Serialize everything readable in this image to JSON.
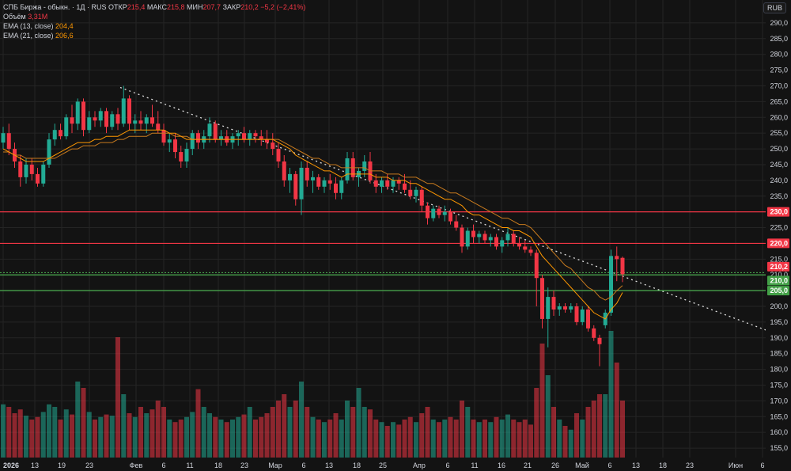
{
  "header": {
    "symbol": "СПБ Биржа - обыкн.",
    "interval": "1Д",
    "exchange": "RUS",
    "open_label": "ОТКР",
    "open": "215,4",
    "high_label": "МАКС",
    "high": "215,8",
    "low_label": "МИН",
    "low": "207,7",
    "close_label": "ЗАКР",
    "close": "210,2",
    "change": "−5,2 (−2,41%)",
    "volume_label": "Объём",
    "volume": "3,31M",
    "ema13_label": "EMA (13, close)",
    "ema13": "204,4",
    "ema21_label": "EMA (21, close)",
    "ema21": "206,6"
  },
  "currency": "RUB",
  "colors": {
    "up": "#22ab94",
    "down": "#f23645",
    "ema13": "#ff9800",
    "ema21": "#c77a1e",
    "background": "#131313",
    "grid": "#242424",
    "green_line": "#4caf50"
  },
  "chart_data": {
    "type": "candlestick",
    "y_axis": {
      "range": [
        152,
        294
      ],
      "ticks": [
        "155,0",
        "160,0",
        "165,0",
        "170,0",
        "175,0",
        "180,0",
        "185,0",
        "190,0",
        "195,0",
        "200,0",
        "205,0",
        "210,0",
        "215,0",
        "220,0",
        "225,0",
        "230,0",
        "235,0",
        "240,0",
        "245,0",
        "250,0",
        "255,0",
        "260,0",
        "265,0",
        "270,0",
        "275,0",
        "280,0",
        "285,0",
        "290,0"
      ]
    },
    "x_axis_labels": [
      "2026",
      "13",
      "19",
      "23",
      "Фев",
      "6",
      "11",
      "18",
      "23",
      "Мар",
      "6",
      "13",
      "18",
      "25",
      "Апр",
      "6",
      "11",
      "16",
      "21",
      "26",
      "Май",
      "6",
      "13",
      "18",
      "23",
      "Июн",
      "6"
    ],
    "horizontal_levels": [
      {
        "price": 230.0,
        "label": "230,0",
        "kind": "resistance"
      },
      {
        "price": 220.0,
        "label": "220,0",
        "kind": "resistance"
      },
      {
        "price": 210.2,
        "label": "210,2",
        "kind": "last"
      },
      {
        "price": 210.0,
        "label": "210,0",
        "kind": "support"
      },
      {
        "price": 205.0,
        "label": "205,0",
        "kind": "support"
      }
    ],
    "trendline": {
      "from": {
        "bar": 0,
        "price": 269.5
      },
      "to": {
        "bar": 118,
        "price": 192.5
      }
    },
    "candles": [
      {
        "o": 252,
        "h": 257,
        "l": 250,
        "c": 255,
        "v": 0.42
      },
      {
        "o": 255,
        "h": 258,
        "l": 248,
        "c": 250,
        "v": 0.4
      },
      {
        "o": 250,
        "h": 252,
        "l": 244,
        "c": 246,
        "v": 0.35
      },
      {
        "o": 246,
        "h": 248,
        "l": 238,
        "c": 241,
        "v": 0.38
      },
      {
        "o": 241,
        "h": 247,
        "l": 239,
        "c": 245,
        "v": 0.33
      },
      {
        "o": 245,
        "h": 247,
        "l": 240,
        "c": 242,
        "v": 0.3
      },
      {
        "o": 242,
        "h": 244,
        "l": 238,
        "c": 239,
        "v": 0.32
      },
      {
        "o": 239,
        "h": 246,
        "l": 238,
        "c": 245,
        "v": 0.36
      },
      {
        "o": 245,
        "h": 255,
        "l": 244,
        "c": 253,
        "v": 0.42
      },
      {
        "o": 253,
        "h": 258,
        "l": 251,
        "c": 256,
        "v": 0.4
      },
      {
        "o": 256,
        "h": 258,
        "l": 253,
        "c": 254,
        "v": 0.3
      },
      {
        "o": 254,
        "h": 261,
        "l": 253,
        "c": 260,
        "v": 0.38
      },
      {
        "o": 260,
        "h": 264,
        "l": 255,
        "c": 258,
        "v": 0.34
      },
      {
        "o": 258,
        "h": 266,
        "l": 256,
        "c": 265,
        "v": 0.6
      },
      {
        "o": 265,
        "h": 266,
        "l": 254,
        "c": 256,
        "v": 0.55
      },
      {
        "o": 256,
        "h": 262,
        "l": 255,
        "c": 260,
        "v": 0.36
      },
      {
        "o": 260,
        "h": 262,
        "l": 257,
        "c": 259,
        "v": 0.3
      },
      {
        "o": 259,
        "h": 263,
        "l": 257,
        "c": 262,
        "v": 0.32
      },
      {
        "o": 262,
        "h": 263,
        "l": 255,
        "c": 257,
        "v": 0.34
      },
      {
        "o": 257,
        "h": 262,
        "l": 256,
        "c": 261,
        "v": 0.33
      },
      {
        "o": 261,
        "h": 263,
        "l": 256,
        "c": 258,
        "v": 0.95
      },
      {
        "o": 258,
        "h": 270,
        "l": 257,
        "c": 266,
        "v": 0.5
      },
      {
        "o": 266,
        "h": 267,
        "l": 256,
        "c": 258,
        "v": 0.35
      },
      {
        "o": 258,
        "h": 261,
        "l": 255,
        "c": 259,
        "v": 0.32
      },
      {
        "o": 259,
        "h": 262,
        "l": 256,
        "c": 258,
        "v": 0.4
      },
      {
        "o": 258,
        "h": 261,
        "l": 255,
        "c": 260,
        "v": 0.35
      },
      {
        "o": 260,
        "h": 264,
        "l": 257,
        "c": 258,
        "v": 0.38
      },
      {
        "o": 258,
        "h": 262,
        "l": 255,
        "c": 256,
        "v": 0.45
      },
      {
        "o": 256,
        "h": 258,
        "l": 251,
        "c": 252,
        "v": 0.4
      },
      {
        "o": 252,
        "h": 255,
        "l": 249,
        "c": 253,
        "v": 0.3
      },
      {
        "o": 253,
        "h": 255,
        "l": 247,
        "c": 249,
        "v": 0.28
      },
      {
        "o": 249,
        "h": 251,
        "l": 244,
        "c": 246,
        "v": 0.3
      },
      {
        "o": 246,
        "h": 252,
        "l": 244,
        "c": 250,
        "v": 0.32
      },
      {
        "o": 250,
        "h": 256,
        "l": 248,
        "c": 255,
        "v": 0.36
      },
      {
        "o": 255,
        "h": 256,
        "l": 250,
        "c": 252,
        "v": 0.54
      },
      {
        "o": 252,
        "h": 256,
        "l": 250,
        "c": 254,
        "v": 0.4
      },
      {
        "o": 254,
        "h": 260,
        "l": 252,
        "c": 258,
        "v": 0.35
      },
      {
        "o": 258,
        "h": 259,
        "l": 252,
        "c": 253,
        "v": 0.32
      },
      {
        "o": 253,
        "h": 256,
        "l": 251,
        "c": 254,
        "v": 0.3
      },
      {
        "o": 254,
        "h": 256,
        "l": 251,
        "c": 252,
        "v": 0.28
      },
      {
        "o": 252,
        "h": 255,
        "l": 250,
        "c": 254,
        "v": 0.3
      },
      {
        "o": 254,
        "h": 256,
        "l": 251,
        "c": 255,
        "v": 0.32
      },
      {
        "o": 255,
        "h": 257,
        "l": 252,
        "c": 253,
        "v": 0.34
      },
      {
        "o": 253,
        "h": 256,
        "l": 251,
        "c": 255,
        "v": 0.4
      },
      {
        "o": 255,
        "h": 256,
        "l": 252,
        "c": 254,
        "v": 0.3
      },
      {
        "o": 254,
        "h": 256,
        "l": 251,
        "c": 253,
        "v": 0.32
      },
      {
        "o": 253,
        "h": 256,
        "l": 250,
        "c": 252,
        "v": 0.35
      },
      {
        "o": 252,
        "h": 255,
        "l": 248,
        "c": 250,
        "v": 0.4
      },
      {
        "o": 250,
        "h": 252,
        "l": 244,
        "c": 246,
        "v": 0.45
      },
      {
        "o": 246,
        "h": 248,
        "l": 238,
        "c": 240,
        "v": 0.5
      },
      {
        "o": 240,
        "h": 244,
        "l": 236,
        "c": 242,
        "v": 0.4
      },
      {
        "o": 242,
        "h": 243,
        "l": 232,
        "c": 234,
        "v": 0.45
      },
      {
        "o": 234,
        "h": 246,
        "l": 229,
        "c": 244,
        "v": 0.6
      },
      {
        "o": 244,
        "h": 246,
        "l": 238,
        "c": 240,
        "v": 0.4
      },
      {
        "o": 240,
        "h": 243,
        "l": 236,
        "c": 241,
        "v": 0.32
      },
      {
        "o": 241,
        "h": 242,
        "l": 237,
        "c": 238,
        "v": 0.3
      },
      {
        "o": 238,
        "h": 241,
        "l": 236,
        "c": 240,
        "v": 0.28
      },
      {
        "o": 240,
        "h": 242,
        "l": 237,
        "c": 239,
        "v": 0.3
      },
      {
        "o": 239,
        "h": 241,
        "l": 234,
        "c": 236,
        "v": 0.35
      },
      {
        "o": 236,
        "h": 241,
        "l": 234,
        "c": 240,
        "v": 0.3
      },
      {
        "o": 240,
        "h": 249,
        "l": 239,
        "c": 247,
        "v": 0.45
      },
      {
        "o": 247,
        "h": 249,
        "l": 240,
        "c": 241,
        "v": 0.4
      },
      {
        "o": 241,
        "h": 244,
        "l": 238,
        "c": 243,
        "v": 0.55
      },
      {
        "o": 243,
        "h": 248,
        "l": 241,
        "c": 246,
        "v": 0.4
      },
      {
        "o": 246,
        "h": 249,
        "l": 239,
        "c": 240,
        "v": 0.38
      },
      {
        "o": 240,
        "h": 242,
        "l": 236,
        "c": 238,
        "v": 0.3
      },
      {
        "o": 238,
        "h": 241,
        "l": 236,
        "c": 240,
        "v": 0.28
      },
      {
        "o": 240,
        "h": 242,
        "l": 237,
        "c": 238,
        "v": 0.25
      },
      {
        "o": 238,
        "h": 241,
        "l": 236,
        "c": 240,
        "v": 0.28
      },
      {
        "o": 240,
        "h": 241,
        "l": 237,
        "c": 239,
        "v": 0.26
      },
      {
        "o": 239,
        "h": 242,
        "l": 236,
        "c": 237,
        "v": 0.3
      },
      {
        "o": 237,
        "h": 240,
        "l": 234,
        "c": 235,
        "v": 0.32
      },
      {
        "o": 235,
        "h": 238,
        "l": 233,
        "c": 237,
        "v": 0.28
      },
      {
        "o": 237,
        "h": 238,
        "l": 230,
        "c": 232,
        "v": 0.35
      },
      {
        "o": 232,
        "h": 233,
        "l": 226,
        "c": 228,
        "v": 0.4
      },
      {
        "o": 228,
        "h": 232,
        "l": 227,
        "c": 231,
        "v": 0.3
      },
      {
        "o": 231,
        "h": 232,
        "l": 228,
        "c": 229,
        "v": 0.28
      },
      {
        "o": 229,
        "h": 232,
        "l": 227,
        "c": 230,
        "v": 0.3
      },
      {
        "o": 230,
        "h": 231,
        "l": 226,
        "c": 227,
        "v": 0.32
      },
      {
        "o": 227,
        "h": 229,
        "l": 224,
        "c": 225,
        "v": 0.3
      },
      {
        "o": 225,
        "h": 226,
        "l": 217,
        "c": 219,
        "v": 0.45
      },
      {
        "o": 219,
        "h": 225,
        "l": 218,
        "c": 224,
        "v": 0.4
      },
      {
        "o": 224,
        "h": 226,
        "l": 220,
        "c": 222,
        "v": 0.3
      },
      {
        "o": 222,
        "h": 224,
        "l": 220,
        "c": 223,
        "v": 0.28
      },
      {
        "o": 223,
        "h": 224,
        "l": 220,
        "c": 221,
        "v": 0.3
      },
      {
        "o": 221,
        "h": 223,
        "l": 219,
        "c": 222,
        "v": 0.28
      },
      {
        "o": 222,
        "h": 223,
        "l": 218,
        "c": 219,
        "v": 0.32
      },
      {
        "o": 219,
        "h": 222,
        "l": 217,
        "c": 221,
        "v": 0.3
      },
      {
        "o": 221,
        "h": 225,
        "l": 219,
        "c": 223,
        "v": 0.34
      },
      {
        "o": 223,
        "h": 224,
        "l": 219,
        "c": 220,
        "v": 0.3
      },
      {
        "o": 220,
        "h": 222,
        "l": 218,
        "c": 219,
        "v": 0.28
      },
      {
        "o": 219,
        "h": 221,
        "l": 217,
        "c": 218,
        "v": 0.3
      },
      {
        "o": 218,
        "h": 219,
        "l": 216,
        "c": 217,
        "v": 0.26
      },
      {
        "o": 217,
        "h": 218,
        "l": 200,
        "c": 209,
        "v": 0.55
      },
      {
        "o": 209,
        "h": 210,
        "l": 193,
        "c": 196,
        "v": 0.9
      },
      {
        "o": 196,
        "h": 206,
        "l": 187,
        "c": 203,
        "v": 0.65
      },
      {
        "o": 203,
        "h": 205,
        "l": 197,
        "c": 199,
        "v": 0.4
      },
      {
        "o": 199,
        "h": 201,
        "l": 197,
        "c": 200,
        "v": 0.3
      },
      {
        "o": 200,
        "h": 201,
        "l": 198,
        "c": 199,
        "v": 0.25
      },
      {
        "o": 199,
        "h": 201,
        "l": 198,
        "c": 200,
        "v": 0.22
      },
      {
        "o": 200,
        "h": 201,
        "l": 194,
        "c": 195,
        "v": 0.35
      },
      {
        "o": 195,
        "h": 200,
        "l": 194,
        "c": 199,
        "v": 0.3
      },
      {
        "o": 199,
        "h": 200,
        "l": 192,
        "c": 193,
        "v": 0.4
      },
      {
        "o": 193,
        "h": 194,
        "l": 189,
        "c": 190,
        "v": 0.45
      },
      {
        "o": 190,
        "h": 191,
        "l": 181,
        "c": 188,
        "v": 0.5
      },
      {
        "o": 194,
        "h": 199,
        "l": 193,
        "c": 198,
        "v": 0.5
      },
      {
        "o": 198,
        "h": 218,
        "l": 197,
        "c": 216,
        "v": 1.0
      },
      {
        "o": 216,
        "h": 219,
        "l": 208,
        "c": 215,
        "v": 0.75
      },
      {
        "o": 215.4,
        "h": 215.8,
        "l": 207.7,
        "c": 210.2,
        "v": 0.45
      }
    ],
    "ema13": [
      250,
      249,
      248,
      247,
      246,
      246,
      246,
      246,
      247,
      248,
      249,
      250,
      251,
      252,
      252,
      252,
      253,
      253,
      254,
      254,
      254,
      255,
      256,
      256,
      256,
      256,
      256,
      256,
      256,
      255,
      255,
      254,
      253,
      253,
      253,
      253,
      253,
      253,
      253,
      253,
      253,
      253,
      253,
      253,
      253,
      253,
      253,
      253,
      252,
      251,
      250,
      248,
      247,
      246,
      245,
      244,
      243,
      243,
      242,
      241,
      242,
      242,
      242,
      242,
      242,
      241,
      241,
      241,
      240,
      240,
      240,
      239,
      239,
      238,
      237,
      236,
      235,
      234,
      234,
      233,
      232,
      230,
      229,
      229,
      228,
      227,
      226,
      225,
      225,
      224,
      224,
      223,
      222,
      219,
      216,
      214,
      212,
      210,
      208,
      206,
      204,
      202,
      200,
      198,
      197,
      196,
      199,
      201,
      204.4
    ],
    "ema21": [
      249,
      249,
      248,
      248,
      247,
      247,
      247,
      247,
      247,
      247,
      248,
      249,
      250,
      250,
      251,
      251,
      251,
      252,
      252,
      252,
      253,
      253,
      254,
      254,
      254,
      254,
      255,
      255,
      255,
      255,
      254,
      254,
      254,
      253,
      253,
      253,
      253,
      253,
      253,
      253,
      253,
      253,
      253,
      253,
      253,
      253,
      253,
      253,
      253,
      252,
      251,
      250,
      249,
      248,
      247,
      247,
      246,
      245,
      245,
      244,
      244,
      244,
      244,
      244,
      243,
      243,
      243,
      242,
      242,
      242,
      241,
      241,
      241,
      240,
      239,
      239,
      238,
      237,
      236,
      236,
      235,
      234,
      233,
      232,
      231,
      230,
      229,
      228,
      228,
      227,
      226,
      226,
      225,
      223,
      221,
      219,
      217,
      215,
      213,
      212,
      210,
      208,
      206,
      205,
      203,
      202,
      203,
      205,
      206.6
    ],
    "ema_series": [
      {
        "name": "EMA (13, close)",
        "color": "#ff9800"
      },
      {
        "name": "EMA (21, close)",
        "color": "#c77a1e"
      }
    ]
  }
}
